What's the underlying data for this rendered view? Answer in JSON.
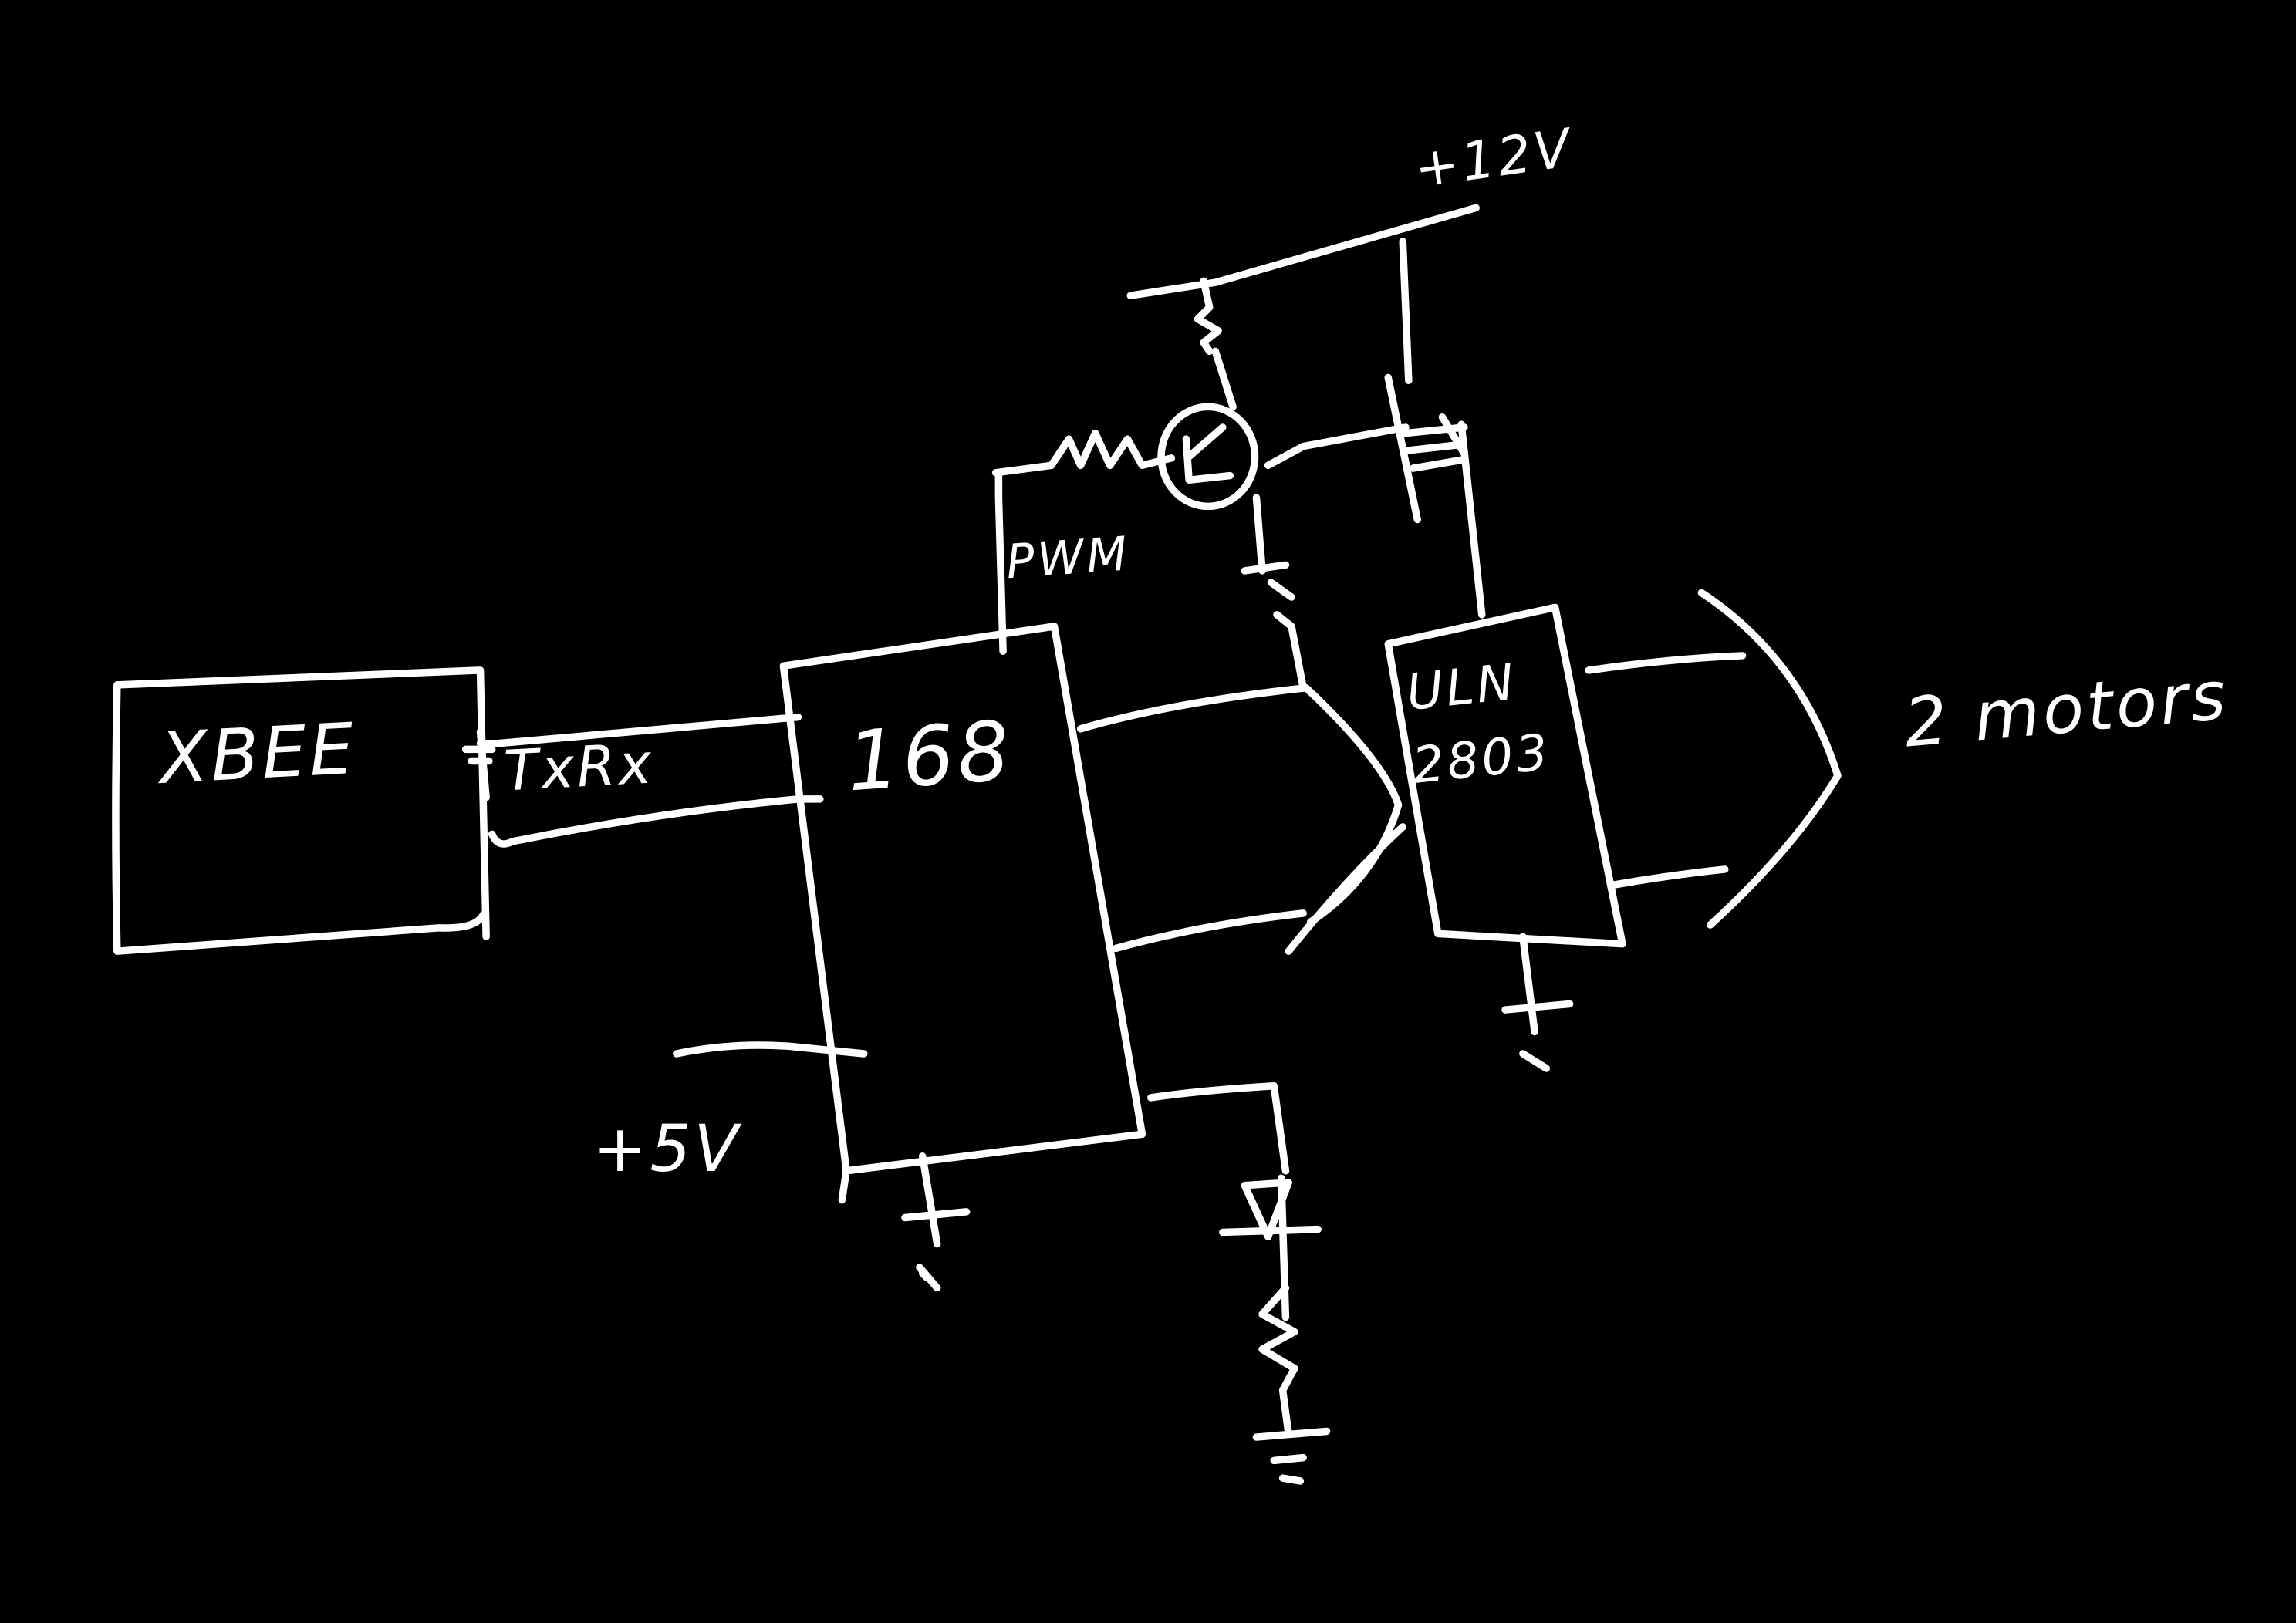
{
  "canvas": {
    "background": "#000000",
    "ink": "#ffffff"
  },
  "labels": {
    "xbee": "XBEE",
    "txrx": "TxRx",
    "mcu": "168",
    "pwm": "PWM",
    "v12": "+12V",
    "v5": "+5V",
    "driver_line1": "ULN",
    "driver_line2": "2803",
    "motors": "2 motors"
  },
  "symbols": [
    "resistor",
    "transistor",
    "capacitor",
    "diode",
    "ground",
    "mosfet"
  ]
}
